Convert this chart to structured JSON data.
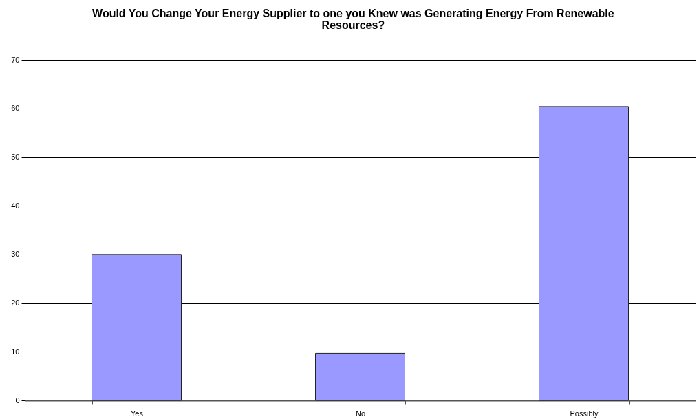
{
  "chart_data": {
    "type": "bar",
    "title": "Would You Change Your Energy Supplier to one you Knew was Generating Energy From Renewable Resources?",
    "categories": [
      "Yes",
      "No",
      "Possibly"
    ],
    "values": [
      30,
      9.7,
      60.4
    ],
    "color": "#9999ff",
    "ylim": [
      0,
      70
    ],
    "yticks": [
      0,
      10,
      20,
      30,
      40,
      50,
      60,
      70
    ],
    "grid": "y"
  }
}
